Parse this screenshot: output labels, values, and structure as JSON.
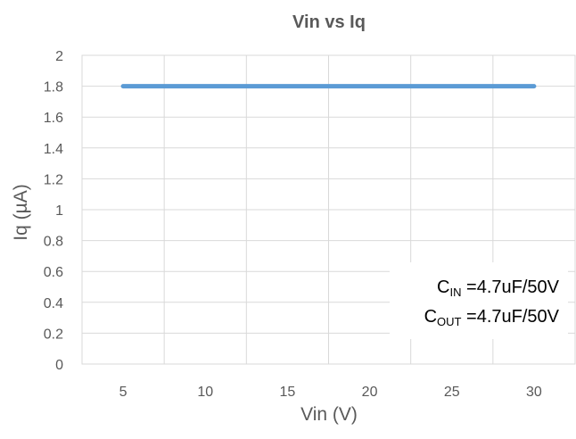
{
  "chart_data": {
    "type": "line",
    "title": "Vin vs Iq",
    "xlabel": "Vin (V)",
    "ylabel": "Iq (µA)",
    "x_ticks": [
      "5",
      "10",
      "15",
      "20",
      "25",
      "30"
    ],
    "y_ticks": [
      "0",
      "0.2",
      "0.4",
      "0.6",
      "0.8",
      "1",
      "1.2",
      "1.4",
      "1.6",
      "1.8",
      "2"
    ],
    "xlim": [
      2.5,
      32.5
    ],
    "ylim": [
      0,
      2
    ],
    "grid": true,
    "series": [
      {
        "color": "#5b9bd5",
        "x": [
          5,
          10,
          15,
          20,
          25,
          30
        ],
        "y": [
          1.8,
          1.8,
          1.8,
          1.8,
          1.8,
          1.8
        ]
      }
    ],
    "annotations": [
      {
        "main": "C",
        "sub": "IN",
        "rest": " =4.7uF/50V"
      },
      {
        "main": "C",
        "sub": "OUT",
        "rest": " =4.7uF/50V"
      }
    ]
  }
}
